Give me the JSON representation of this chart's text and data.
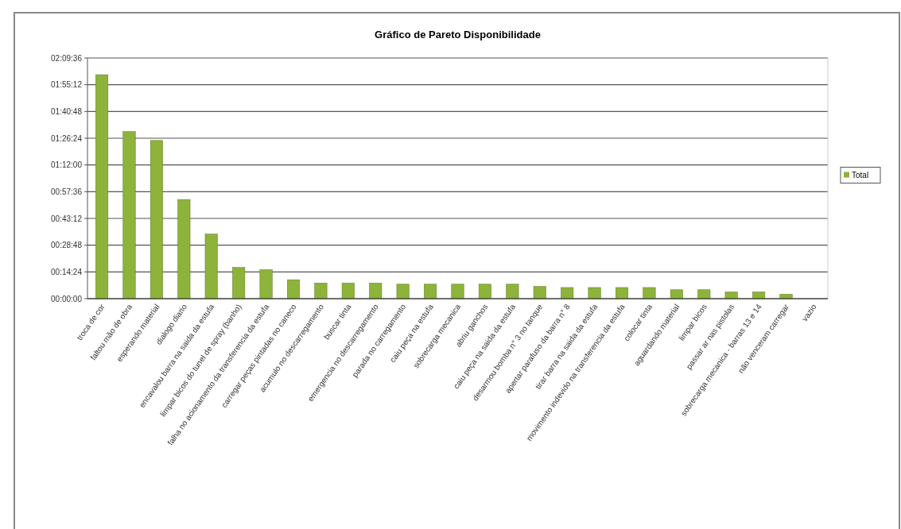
{
  "chart_data": {
    "type": "bar",
    "title": "Gráfico de Pareto Disponibilidade",
    "categories": [
      "troca de cor",
      "faltou mão de obra",
      "esperando material",
      "dialogo diario",
      "encavalou barra na saida da estufa",
      "limpar bicos do tunel de spray (banho)",
      "falha no acionamento da transferencia da estufa",
      "carregar peças pintadas no caneco",
      "acumulo no descarregamento",
      "buscar tinta",
      "emergencia no descarregamento",
      "parada no carregamento",
      "caiu peça na estufa",
      "sobrecarga mecanica",
      "abriu ganchos",
      "caiu peça na saida da estufa",
      "desarmou bomba n° 3 no tanque",
      "apertar parafuso da barra n° 8",
      "tirar barra na saida da estufa",
      "movimento indevido na transferencia da estufa",
      "colocar tinta",
      "aguardando material",
      "limpar bicos",
      "passar ar nas pistolas",
      "sobrecarga mecanica - barras 13 e 14",
      "não venceram carregar",
      "vazio"
    ],
    "series": [
      {
        "name": "Total",
        "color": "#8db33a",
        "values": [
          2.01,
          1.5,
          1.42,
          0.89,
          0.58,
          0.28,
          0.26,
          0.17,
          0.14,
          0.14,
          0.14,
          0.13,
          0.13,
          0.13,
          0.13,
          0.13,
          0.11,
          0.1,
          0.1,
          0.1,
          0.1,
          0.08,
          0.08,
          0.06,
          0.06,
          0.04,
          null
        ]
      }
    ],
    "ylim": [
      0,
      2.16
    ],
    "yticks": [
      {
        "value": 0,
        "label": "00:00:00"
      },
      {
        "value": 0.24,
        "label": "00:14:24"
      },
      {
        "value": 0.48,
        "label": "00:28:48"
      },
      {
        "value": 0.72,
        "label": "00:43:12"
      },
      {
        "value": 0.96,
        "label": "00:57:36"
      },
      {
        "value": 1.2,
        "label": "01:12:00"
      },
      {
        "value": 1.44,
        "label": "01:26:24"
      },
      {
        "value": 1.68,
        "label": "01:40:48"
      },
      {
        "value": 1.92,
        "label": "01:55:12"
      },
      {
        "value": 2.16,
        "label": "02:09:36"
      }
    ],
    "grid": "y",
    "legend": "right"
  }
}
